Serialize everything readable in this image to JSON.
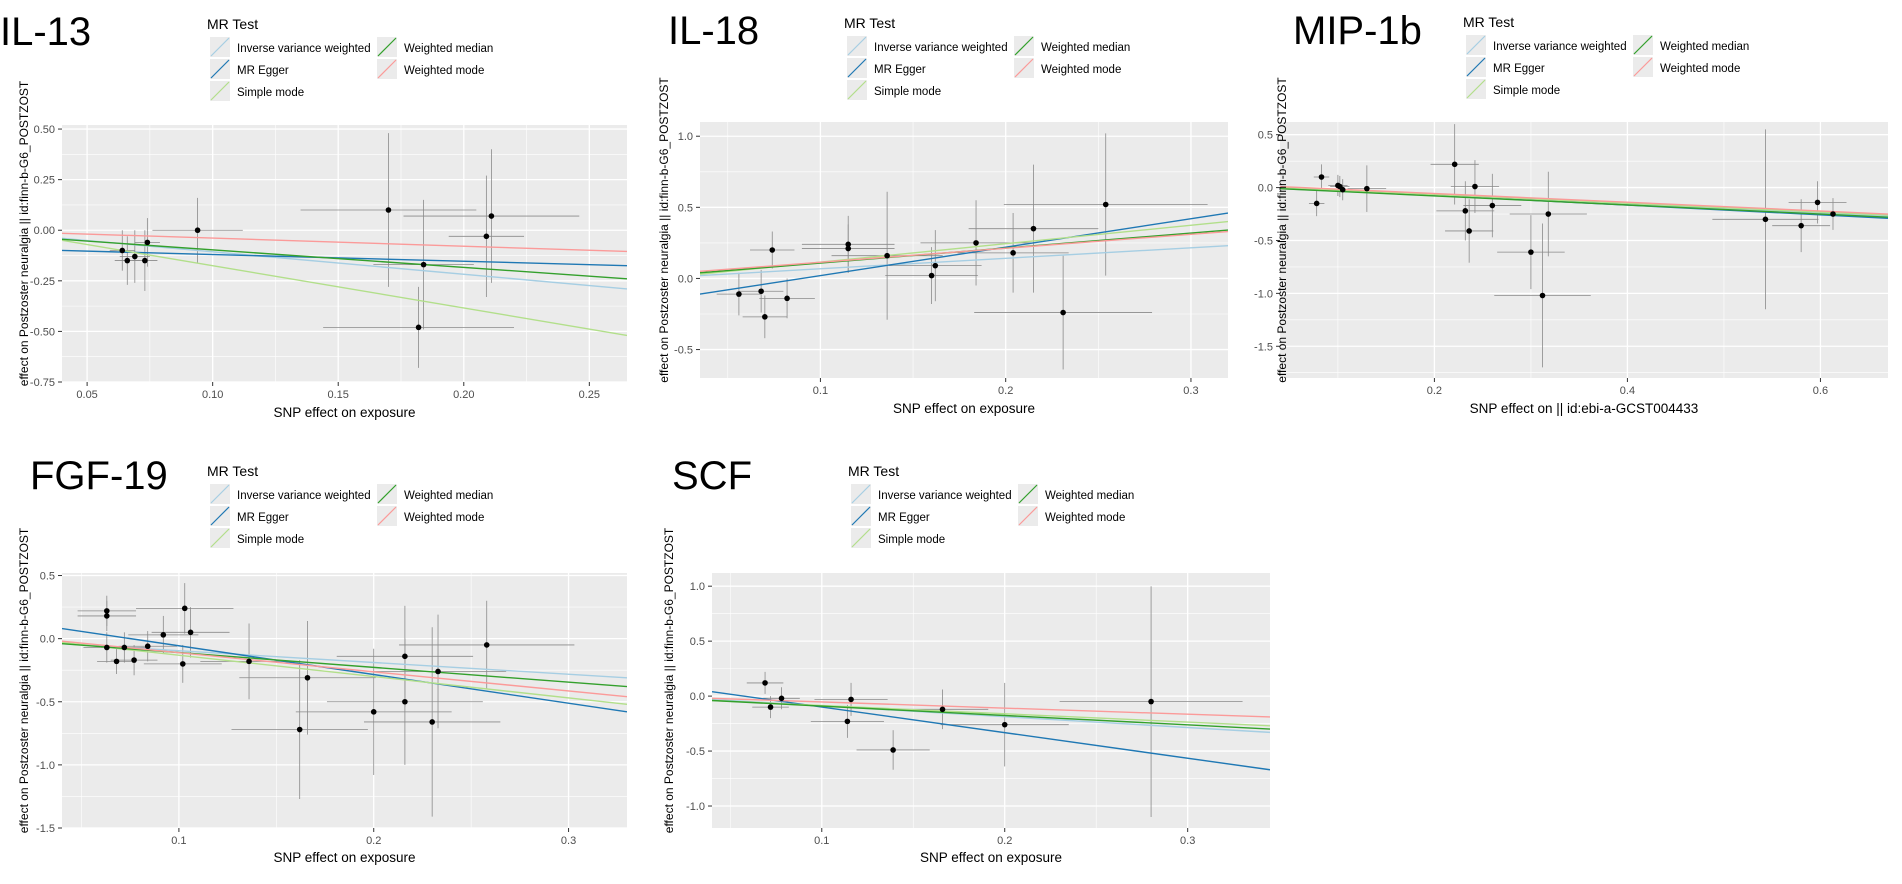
{
  "colors": {
    "panel_bg": "#ebebeb",
    "grid": "#ffffff",
    "points": "#000000",
    "error_bars": "#8a8a8a",
    "axis_text": "#4d4d4d",
    "ivw": "#a6cee3",
    "mr_egger": "#1f78b4",
    "simple_mode": "#b2df8a",
    "weighted_median": "#33a02c",
    "weighted_mode": "#fb9a99"
  },
  "legend": {
    "title": "MR Test",
    "items": [
      {
        "key": "ivw",
        "label": "Inverse variance weighted"
      },
      {
        "key": "weighted_median",
        "label": "Weighted median"
      },
      {
        "key": "mr_egger",
        "label": "MR Egger"
      },
      {
        "key": "weighted_mode",
        "label": "Weighted mode"
      },
      {
        "key": "simple_mode",
        "label": "Simple mode"
      }
    ]
  },
  "chart_data": [
    {
      "type": "scatter",
      "title": "IL-13",
      "xlabel": "SNP effect on exposure",
      "ylabel": "effect on Postzoster neuralgia || id:finn-b-G6_POSTZOST",
      "xlim": [
        0.04,
        0.265
      ],
      "ylim": [
        -0.75,
        0.52
      ],
      "xticks": [
        0.05,
        0.1,
        0.15,
        0.2,
        0.25
      ],
      "xtick_labels": [
        "0.05",
        "0.10",
        "0.15",
        "0.20",
        "0.25"
      ],
      "yticks": [
        -0.75,
        -0.5,
        -0.25,
        0,
        0.25,
        0.5
      ],
      "ytick_labels": [
        "-0.75",
        "-0.50",
        "-0.25",
        "0.00",
        "0.25",
        "0.50"
      ],
      "points": [
        {
          "x": 0.064,
          "y": -0.1,
          "xerr": 0.005,
          "yerr": 0.1
        },
        {
          "x": 0.066,
          "y": -0.15,
          "xerr": 0.005,
          "yerr": 0.12
        },
        {
          "x": 0.069,
          "y": -0.13,
          "xerr": 0.006,
          "yerr": 0.13
        },
        {
          "x": 0.073,
          "y": -0.15,
          "xerr": 0.005,
          "yerr": 0.15
        },
        {
          "x": 0.074,
          "y": -0.06,
          "xerr": 0.005,
          "yerr": 0.12
        },
        {
          "x": 0.094,
          "y": 0.0,
          "xerr": 0.018,
          "yerr": 0.16
        },
        {
          "x": 0.17,
          "y": 0.1,
          "xerr": 0.035,
          "yerr": 0.38
        },
        {
          "x": 0.182,
          "y": -0.48,
          "xerr": 0.038,
          "yerr": 0.2
        },
        {
          "x": 0.184,
          "y": -0.17,
          "xerr": 0.02,
          "yerr": 0.32
        },
        {
          "x": 0.209,
          "y": -0.03,
          "xerr": 0.015,
          "yerr": 0.3
        },
        {
          "x": 0.211,
          "y": 0.07,
          "xerr": 0.035,
          "yerr": 0.33
        }
      ],
      "lines": [
        {
          "method": "ivw",
          "x": [
            0.04,
            0.265
          ],
          "y": [
            -0.04,
            -0.29
          ]
        },
        {
          "method": "mr_egger",
          "x": [
            0.04,
            0.265
          ],
          "y": [
            -0.1,
            -0.175
          ]
        },
        {
          "method": "simple_mode",
          "x": [
            0.04,
            0.265
          ],
          "y": [
            -0.05,
            -0.52
          ]
        },
        {
          "method": "weighted_median",
          "x": [
            0.04,
            0.265
          ],
          "y": [
            -0.045,
            -0.24
          ]
        },
        {
          "method": "weighted_mode",
          "x": [
            0.04,
            0.265
          ],
          "y": [
            -0.015,
            -0.105
          ]
        }
      ]
    },
    {
      "type": "scatter",
      "title": "IL-18",
      "xlabel": "SNP effect on exposure",
      "ylabel": "effect on Postzoster neuralgia || id:finn-b-G6_POSTZOST",
      "xlim": [
        0.035,
        0.32
      ],
      "ylim": [
        -0.7,
        1.1
      ],
      "xticks": [
        0.1,
        0.2,
        0.3
      ],
      "xtick_labels": [
        "0.1",
        "0.2",
        "0.3"
      ],
      "yticks": [
        -0.5,
        0,
        0.5,
        1
      ],
      "ytick_labels": [
        "-0.5",
        "0.0",
        "0.5",
        "1.0"
      ],
      "points": [
        {
          "x": 0.056,
          "y": -0.11,
          "xerr": 0.012,
          "yerr": 0.15
        },
        {
          "x": 0.068,
          "y": -0.09,
          "xerr": 0.012,
          "yerr": 0.15
        },
        {
          "x": 0.07,
          "y": -0.27,
          "xerr": 0.012,
          "yerr": 0.15
        },
        {
          "x": 0.074,
          "y": 0.2,
          "xerr": 0.012,
          "yerr": 0.13
        },
        {
          "x": 0.082,
          "y": -0.14,
          "xerr": 0.015,
          "yerr": 0.14
        },
        {
          "x": 0.115,
          "y": 0.24,
          "xerr": 0.025,
          "yerr": 0.2
        },
        {
          "x": 0.115,
          "y": 0.21,
          "xerr": 0.025,
          "yerr": 0.17
        },
        {
          "x": 0.136,
          "y": 0.16,
          "xerr": 0.03,
          "yerr": 0.45
        },
        {
          "x": 0.16,
          "y": 0.02,
          "xerr": 0.025,
          "yerr": 0.2
        },
        {
          "x": 0.162,
          "y": 0.09,
          "xerr": 0.025,
          "yerr": 0.25
        },
        {
          "x": 0.184,
          "y": 0.25,
          "xerr": 0.03,
          "yerr": 0.3
        },
        {
          "x": 0.204,
          "y": 0.18,
          "xerr": 0.03,
          "yerr": 0.28
        },
        {
          "x": 0.215,
          "y": 0.35,
          "xerr": 0.035,
          "yerr": 0.45
        },
        {
          "x": 0.231,
          "y": -0.24,
          "xerr": 0.048,
          "yerr": 0.4
        },
        {
          "x": 0.254,
          "y": 0.52,
          "xerr": 0.055,
          "yerr": 0.5
        }
      ],
      "lines": [
        {
          "method": "ivw",
          "x": [
            0.035,
            0.32
          ],
          "y": [
            0.02,
            0.23
          ]
        },
        {
          "method": "mr_egger",
          "x": [
            0.035,
            0.32
          ],
          "y": [
            -0.11,
            0.46
          ]
        },
        {
          "method": "simple_mode",
          "x": [
            0.035,
            0.32
          ],
          "y": [
            0.03,
            0.4
          ]
        },
        {
          "method": "weighted_median",
          "x": [
            0.035,
            0.32
          ],
          "y": [
            0.04,
            0.34
          ]
        },
        {
          "method": "weighted_mode",
          "x": [
            0.035,
            0.32
          ],
          "y": [
            0.05,
            0.33
          ]
        }
      ]
    },
    {
      "type": "scatter",
      "title": "MIP-1b",
      "xlabel": "SNP effect on  || id:ebi-a-GCST004433",
      "ylabel": "effect on Postzoster neuralgia || id:finn-b-G6_POSTZOST",
      "xlim": [
        0.04,
        0.67
      ],
      "ylim": [
        -1.8,
        0.62
      ],
      "xticks": [
        0.2,
        0.4,
        0.6
      ],
      "xtick_labels": [
        "0.2",
        "0.4",
        "0.6"
      ],
      "yticks": [
        -1.5,
        -1,
        -0.5,
        0,
        0.5
      ],
      "ytick_labels": [
        "-1.5",
        "-1.0",
        "-0.5",
        "0.0",
        "0.5"
      ],
      "points": [
        {
          "x": 0.078,
          "y": -0.15,
          "xerr": 0.008,
          "yerr": 0.12
        },
        {
          "x": 0.083,
          "y": 0.1,
          "xerr": 0.008,
          "yerr": 0.12
        },
        {
          "x": 0.1,
          "y": 0.02,
          "xerr": 0.01,
          "yerr": 0.1
        },
        {
          "x": 0.102,
          "y": 0.01,
          "xerr": 0.01,
          "yerr": 0.1
        },
        {
          "x": 0.105,
          "y": -0.02,
          "xerr": 0.01,
          "yerr": 0.1
        },
        {
          "x": 0.13,
          "y": -0.01,
          "xerr": 0.02,
          "yerr": 0.22
        },
        {
          "x": 0.221,
          "y": 0.22,
          "xerr": 0.025,
          "yerr": 0.38
        },
        {
          "x": 0.232,
          "y": -0.22,
          "xerr": 0.03,
          "yerr": 0.28
        },
        {
          "x": 0.236,
          "y": -0.41,
          "xerr": 0.025,
          "yerr": 0.3
        },
        {
          "x": 0.242,
          "y": 0.01,
          "xerr": 0.025,
          "yerr": 0.25
        },
        {
          "x": 0.26,
          "y": -0.17,
          "xerr": 0.03,
          "yerr": 0.3
        },
        {
          "x": 0.3,
          "y": -0.61,
          "xerr": 0.035,
          "yerr": 0.35
        },
        {
          "x": 0.312,
          "y": -1.02,
          "xerr": 0.05,
          "yerr": 0.68
        },
        {
          "x": 0.318,
          "y": -0.25,
          "xerr": 0.04,
          "yerr": 0.4
        },
        {
          "x": 0.543,
          "y": -0.3,
          "xerr": 0.055,
          "yerr": 0.85
        },
        {
          "x": 0.58,
          "y": -0.36,
          "xerr": 0.03,
          "yerr": 0.25
        },
        {
          "x": 0.597,
          "y": -0.14,
          "xerr": 0.03,
          "yerr": 0.2
        },
        {
          "x": 0.613,
          "y": -0.25,
          "xerr": 0.025,
          "yerr": 0.15
        }
      ],
      "lines": [
        {
          "method": "ivw",
          "x": [
            0.04,
            0.67
          ],
          "y": [
            -0.01,
            -0.27
          ]
        },
        {
          "method": "mr_egger",
          "x": [
            0.04,
            0.67
          ],
          "y": [
            0.0,
            -0.29
          ]
        },
        {
          "method": "simple_mode",
          "x": [
            0.04,
            0.67
          ],
          "y": [
            0.0,
            -0.26
          ]
        },
        {
          "method": "weighted_median",
          "x": [
            0.04,
            0.67
          ],
          "y": [
            -0.01,
            -0.28
          ]
        },
        {
          "method": "weighted_mode",
          "x": [
            0.04,
            0.67
          ],
          "y": [
            0.01,
            -0.25
          ]
        }
      ]
    },
    {
      "type": "scatter",
      "title": "FGF-19",
      "xlabel": "SNP effect on exposure",
      "ylabel": "effect on Postzoster neuralgia || id:finn-b-G6_POSTZOST",
      "xlim": [
        0.04,
        0.33
      ],
      "ylim": [
        -1.5,
        0.52
      ],
      "xticks": [
        0.1,
        0.2,
        0.3
      ],
      "xtick_labels": [
        "0.1",
        "0.2",
        "0.3"
      ],
      "yticks": [
        -1.5,
        -1,
        -0.5,
        0,
        0.5
      ],
      "ytick_labels": [
        "-1.5",
        "-1.0",
        "-0.5",
        "0.0",
        "0.5"
      ],
      "points": [
        {
          "x": 0.063,
          "y": 0.22,
          "xerr": 0.015,
          "yerr": 0.12
        },
        {
          "x": 0.063,
          "y": 0.18,
          "xerr": 0.015,
          "yerr": 0.12
        },
        {
          "x": 0.063,
          "y": -0.07,
          "xerr": 0.012,
          "yerr": 0.12
        },
        {
          "x": 0.068,
          "y": -0.18,
          "xerr": 0.01,
          "yerr": 0.1
        },
        {
          "x": 0.072,
          "y": -0.07,
          "xerr": 0.012,
          "yerr": 0.12
        },
        {
          "x": 0.077,
          "y": -0.17,
          "xerr": 0.012,
          "yerr": 0.12
        },
        {
          "x": 0.084,
          "y": -0.06,
          "xerr": 0.015,
          "yerr": 0.12
        },
        {
          "x": 0.092,
          "y": 0.03,
          "xerr": 0.018,
          "yerr": 0.15
        },
        {
          "x": 0.102,
          "y": -0.2,
          "xerr": 0.02,
          "yerr": 0.15
        },
        {
          "x": 0.103,
          "y": 0.24,
          "xerr": 0.025,
          "yerr": 0.2
        },
        {
          "x": 0.106,
          "y": 0.05,
          "xerr": 0.02,
          "yerr": 0.2
        },
        {
          "x": 0.136,
          "y": -0.18,
          "xerr": 0.025,
          "yerr": 0.3
        },
        {
          "x": 0.162,
          "y": -0.72,
          "xerr": 0.035,
          "yerr": 0.55
        },
        {
          "x": 0.166,
          "y": -0.31,
          "xerr": 0.035,
          "yerr": 0.45
        },
        {
          "x": 0.2,
          "y": -0.58,
          "xerr": 0.04,
          "yerr": 0.5
        },
        {
          "x": 0.216,
          "y": -0.14,
          "xerr": 0.035,
          "yerr": 0.4
        },
        {
          "x": 0.216,
          "y": -0.5,
          "xerr": 0.04,
          "yerr": 0.5
        },
        {
          "x": 0.23,
          "y": -0.66,
          "xerr": 0.035,
          "yerr": 0.75
        },
        {
          "x": 0.233,
          "y": -0.26,
          "xerr": 0.035,
          "yerr": 0.45
        },
        {
          "x": 0.258,
          "y": -0.05,
          "xerr": 0.045,
          "yerr": 0.35
        }
      ],
      "lines": [
        {
          "method": "ivw",
          "x": [
            0.04,
            0.33
          ],
          "y": [
            -0.04,
            -0.31
          ]
        },
        {
          "method": "mr_egger",
          "x": [
            0.04,
            0.33
          ],
          "y": [
            0.08,
            -0.58
          ]
        },
        {
          "method": "simple_mode",
          "x": [
            0.04,
            0.33
          ],
          "y": [
            -0.03,
            -0.52
          ]
        },
        {
          "method": "weighted_median",
          "x": [
            0.04,
            0.33
          ],
          "y": [
            -0.04,
            -0.38
          ]
        },
        {
          "method": "weighted_mode",
          "x": [
            0.04,
            0.33
          ],
          "y": [
            -0.02,
            -0.46
          ]
        }
      ]
    },
    {
      "type": "scatter",
      "title": "SCF",
      "xlabel": "SNP effect on exposure",
      "ylabel": "effect on Postzoster neuralgia || id:finn-b-G6_POSTZOST",
      "xlim": [
        0.04,
        0.345
      ],
      "ylim": [
        -1.2,
        1.12
      ],
      "xticks": [
        0.1,
        0.2,
        0.3
      ],
      "xtick_labels": [
        "0.1",
        "0.2",
        "0.3"
      ],
      "yticks": [
        -1,
        -0.5,
        0,
        0.5,
        1
      ],
      "ytick_labels": [
        "-1.0",
        "-0.5",
        "0.0",
        "0.5",
        "1.0"
      ],
      "points": [
        {
          "x": 0.069,
          "y": 0.12,
          "xerr": 0.01,
          "yerr": 0.1
        },
        {
          "x": 0.072,
          "y": -0.1,
          "xerr": 0.01,
          "yerr": 0.1
        },
        {
          "x": 0.078,
          "y": -0.02,
          "xerr": 0.01,
          "yerr": 0.1
        },
        {
          "x": 0.114,
          "y": -0.23,
          "xerr": 0.02,
          "yerr": 0.15
        },
        {
          "x": 0.116,
          "y": -0.03,
          "xerr": 0.02,
          "yerr": 0.15
        },
        {
          "x": 0.139,
          "y": -0.49,
          "xerr": 0.02,
          "yerr": 0.18
        },
        {
          "x": 0.166,
          "y": -0.12,
          "xerr": 0.025,
          "yerr": 0.18
        },
        {
          "x": 0.2,
          "y": -0.26,
          "xerr": 0.035,
          "yerr": 0.38
        },
        {
          "x": 0.28,
          "y": -0.05,
          "xerr": 0.05,
          "yerr": 1.05
        }
      ],
      "lines": [
        {
          "method": "ivw",
          "x": [
            0.04,
            0.345
          ],
          "y": [
            -0.03,
            -0.33
          ]
        },
        {
          "method": "mr_egger",
          "x": [
            0.04,
            0.345
          ],
          "y": [
            0.04,
            -0.67
          ]
        },
        {
          "method": "simple_mode",
          "x": [
            0.04,
            0.345
          ],
          "y": [
            -0.04,
            -0.27
          ]
        },
        {
          "method": "weighted_median",
          "x": [
            0.04,
            0.345
          ],
          "y": [
            -0.04,
            -0.3
          ]
        },
        {
          "method": "weighted_mode",
          "x": [
            0.04,
            0.345
          ],
          "y": [
            -0.02,
            -0.19
          ]
        }
      ]
    }
  ]
}
